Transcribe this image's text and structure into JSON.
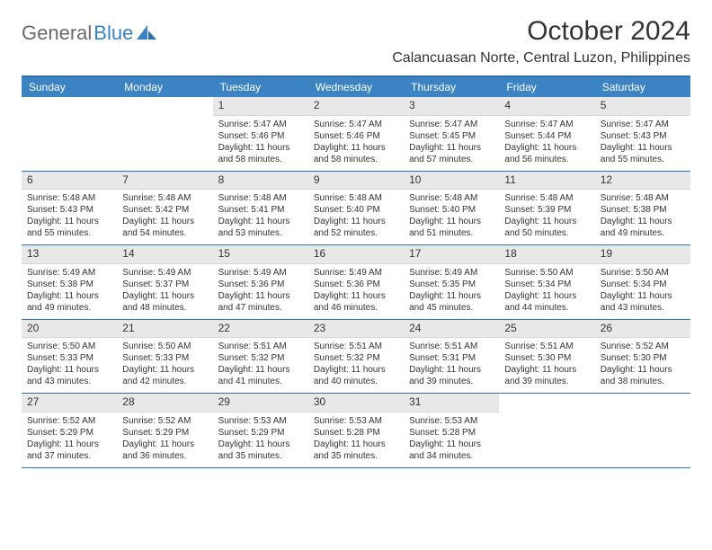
{
  "brand": {
    "name_a": "General",
    "name_b": "Blue"
  },
  "title": "October 2024",
  "location": "Calancuasan Norte, Central Luzon, Philippines",
  "colors": {
    "header_bg": "#3b83c2",
    "header_border": "#2f6ea8",
    "daynum_bg": "#e8e8e8",
    "text": "#333333"
  },
  "day_headers": [
    "Sunday",
    "Monday",
    "Tuesday",
    "Wednesday",
    "Thursday",
    "Friday",
    "Saturday"
  ],
  "weeks": [
    [
      null,
      null,
      {
        "n": "1",
        "sr": "Sunrise: 5:47 AM",
        "ss": "Sunset: 5:46 PM",
        "dl": "Daylight: 11 hours and 58 minutes."
      },
      {
        "n": "2",
        "sr": "Sunrise: 5:47 AM",
        "ss": "Sunset: 5:46 PM",
        "dl": "Daylight: 11 hours and 58 minutes."
      },
      {
        "n": "3",
        "sr": "Sunrise: 5:47 AM",
        "ss": "Sunset: 5:45 PM",
        "dl": "Daylight: 11 hours and 57 minutes."
      },
      {
        "n": "4",
        "sr": "Sunrise: 5:47 AM",
        "ss": "Sunset: 5:44 PM",
        "dl": "Daylight: 11 hours and 56 minutes."
      },
      {
        "n": "5",
        "sr": "Sunrise: 5:47 AM",
        "ss": "Sunset: 5:43 PM",
        "dl": "Daylight: 11 hours and 55 minutes."
      }
    ],
    [
      {
        "n": "6",
        "sr": "Sunrise: 5:48 AM",
        "ss": "Sunset: 5:43 PM",
        "dl": "Daylight: 11 hours and 55 minutes."
      },
      {
        "n": "7",
        "sr": "Sunrise: 5:48 AM",
        "ss": "Sunset: 5:42 PM",
        "dl": "Daylight: 11 hours and 54 minutes."
      },
      {
        "n": "8",
        "sr": "Sunrise: 5:48 AM",
        "ss": "Sunset: 5:41 PM",
        "dl": "Daylight: 11 hours and 53 minutes."
      },
      {
        "n": "9",
        "sr": "Sunrise: 5:48 AM",
        "ss": "Sunset: 5:40 PM",
        "dl": "Daylight: 11 hours and 52 minutes."
      },
      {
        "n": "10",
        "sr": "Sunrise: 5:48 AM",
        "ss": "Sunset: 5:40 PM",
        "dl": "Daylight: 11 hours and 51 minutes."
      },
      {
        "n": "11",
        "sr": "Sunrise: 5:48 AM",
        "ss": "Sunset: 5:39 PM",
        "dl": "Daylight: 11 hours and 50 minutes."
      },
      {
        "n": "12",
        "sr": "Sunrise: 5:48 AM",
        "ss": "Sunset: 5:38 PM",
        "dl": "Daylight: 11 hours and 49 minutes."
      }
    ],
    [
      {
        "n": "13",
        "sr": "Sunrise: 5:49 AM",
        "ss": "Sunset: 5:38 PM",
        "dl": "Daylight: 11 hours and 49 minutes."
      },
      {
        "n": "14",
        "sr": "Sunrise: 5:49 AM",
        "ss": "Sunset: 5:37 PM",
        "dl": "Daylight: 11 hours and 48 minutes."
      },
      {
        "n": "15",
        "sr": "Sunrise: 5:49 AM",
        "ss": "Sunset: 5:36 PM",
        "dl": "Daylight: 11 hours and 47 minutes."
      },
      {
        "n": "16",
        "sr": "Sunrise: 5:49 AM",
        "ss": "Sunset: 5:36 PM",
        "dl": "Daylight: 11 hours and 46 minutes."
      },
      {
        "n": "17",
        "sr": "Sunrise: 5:49 AM",
        "ss": "Sunset: 5:35 PM",
        "dl": "Daylight: 11 hours and 45 minutes."
      },
      {
        "n": "18",
        "sr": "Sunrise: 5:50 AM",
        "ss": "Sunset: 5:34 PM",
        "dl": "Daylight: 11 hours and 44 minutes."
      },
      {
        "n": "19",
        "sr": "Sunrise: 5:50 AM",
        "ss": "Sunset: 5:34 PM",
        "dl": "Daylight: 11 hours and 43 minutes."
      }
    ],
    [
      {
        "n": "20",
        "sr": "Sunrise: 5:50 AM",
        "ss": "Sunset: 5:33 PM",
        "dl": "Daylight: 11 hours and 43 minutes."
      },
      {
        "n": "21",
        "sr": "Sunrise: 5:50 AM",
        "ss": "Sunset: 5:33 PM",
        "dl": "Daylight: 11 hours and 42 minutes."
      },
      {
        "n": "22",
        "sr": "Sunrise: 5:51 AM",
        "ss": "Sunset: 5:32 PM",
        "dl": "Daylight: 11 hours and 41 minutes."
      },
      {
        "n": "23",
        "sr": "Sunrise: 5:51 AM",
        "ss": "Sunset: 5:32 PM",
        "dl": "Daylight: 11 hours and 40 minutes."
      },
      {
        "n": "24",
        "sr": "Sunrise: 5:51 AM",
        "ss": "Sunset: 5:31 PM",
        "dl": "Daylight: 11 hours and 39 minutes."
      },
      {
        "n": "25",
        "sr": "Sunrise: 5:51 AM",
        "ss": "Sunset: 5:30 PM",
        "dl": "Daylight: 11 hours and 39 minutes."
      },
      {
        "n": "26",
        "sr": "Sunrise: 5:52 AM",
        "ss": "Sunset: 5:30 PM",
        "dl": "Daylight: 11 hours and 38 minutes."
      }
    ],
    [
      {
        "n": "27",
        "sr": "Sunrise: 5:52 AM",
        "ss": "Sunset: 5:29 PM",
        "dl": "Daylight: 11 hours and 37 minutes."
      },
      {
        "n": "28",
        "sr": "Sunrise: 5:52 AM",
        "ss": "Sunset: 5:29 PM",
        "dl": "Daylight: 11 hours and 36 minutes."
      },
      {
        "n": "29",
        "sr": "Sunrise: 5:53 AM",
        "ss": "Sunset: 5:29 PM",
        "dl": "Daylight: 11 hours and 35 minutes."
      },
      {
        "n": "30",
        "sr": "Sunrise: 5:53 AM",
        "ss": "Sunset: 5:28 PM",
        "dl": "Daylight: 11 hours and 35 minutes."
      },
      {
        "n": "31",
        "sr": "Sunrise: 5:53 AM",
        "ss": "Sunset: 5:28 PM",
        "dl": "Daylight: 11 hours and 34 minutes."
      },
      null,
      null
    ]
  ]
}
